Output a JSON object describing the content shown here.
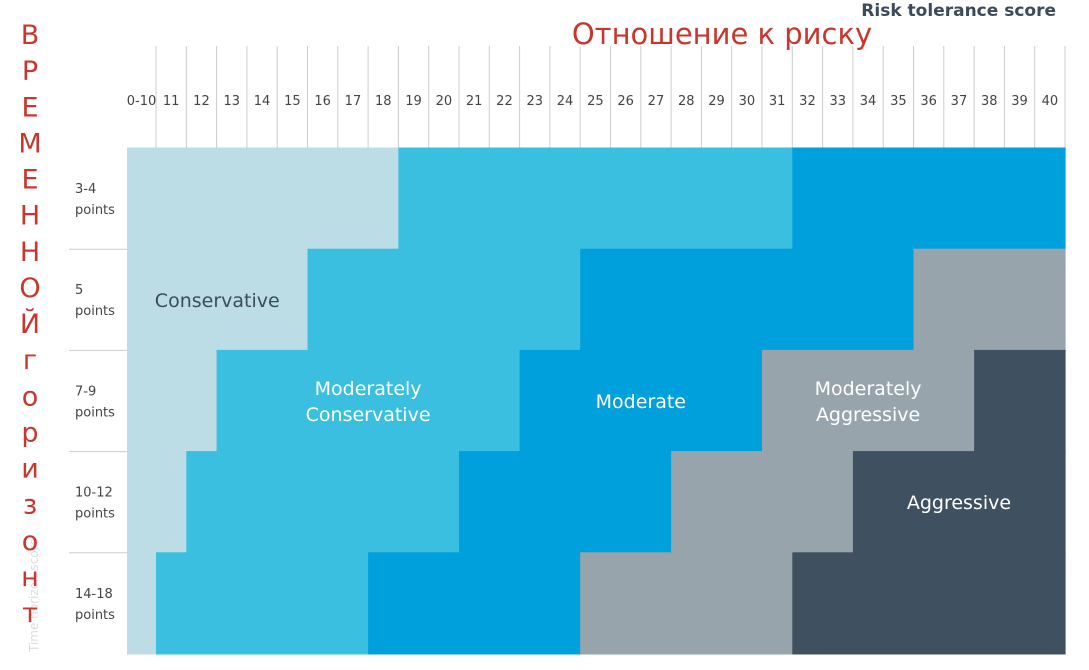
{
  "chart_data": {
    "type": "heatmap",
    "title": "Отношение к риску",
    "xlabel": "Risk tolerance score",
    "ylabel_left": "ВРЕМЕННОЙ горизонт",
    "ylabel_faint": "Time horizon score",
    "x_categories": [
      "0-10",
      "11",
      "12",
      "13",
      "14",
      "15",
      "16",
      "17",
      "18",
      "19",
      "20",
      "21",
      "22",
      "23",
      "24",
      "25",
      "26",
      "27",
      "28",
      "29",
      "30",
      "31",
      "32",
      "33",
      "34",
      "35",
      "36",
      "37",
      "38",
      "39",
      "40"
    ],
    "y_categories": [
      [
        "3-4",
        "points"
      ],
      [
        "5",
        "points"
      ],
      [
        "7-9",
        "points"
      ],
      [
        "10-12",
        "points"
      ],
      [
        "14-18",
        "points"
      ]
    ],
    "zones": [
      {
        "name": "Conservative",
        "label_lines": [
          "Conservative"
        ],
        "color": "#bcdde6",
        "text_color": "#3c4b5b"
      },
      {
        "name": "Moderately Conservative",
        "label_lines": [
          "Moderately",
          "Conservative"
        ],
        "color": "#3bbfe1",
        "text_color": "#ffffff"
      },
      {
        "name": "Moderate",
        "label_lines": [
          "Moderate"
        ],
        "color": "#00a0dc",
        "text_color": "#ffffff"
      },
      {
        "name": "Moderately Aggressive",
        "label_lines": [
          "Moderately",
          "Aggressive"
        ],
        "color": "#97a4ac",
        "text_color": "#ffffff"
      },
      {
        "name": "Aggressive",
        "label_lines": [
          "Aggressive"
        ],
        "color": "#3f5060",
        "text_color": "#ffffff"
      }
    ],
    "zone_last_column_per_row": [
      [
        "18",
        "31",
        "40",
        null
      ],
      [
        "15",
        "24",
        "35",
        "40"
      ],
      [
        "12",
        "22",
        "30",
        "37"
      ],
      [
        "11",
        "20",
        "27",
        "33"
      ],
      [
        "0-10",
        "17",
        "24",
        "31"
      ]
    ],
    "zone_label_rows": [
      1,
      2,
      2,
      2,
      3
    ]
  }
}
